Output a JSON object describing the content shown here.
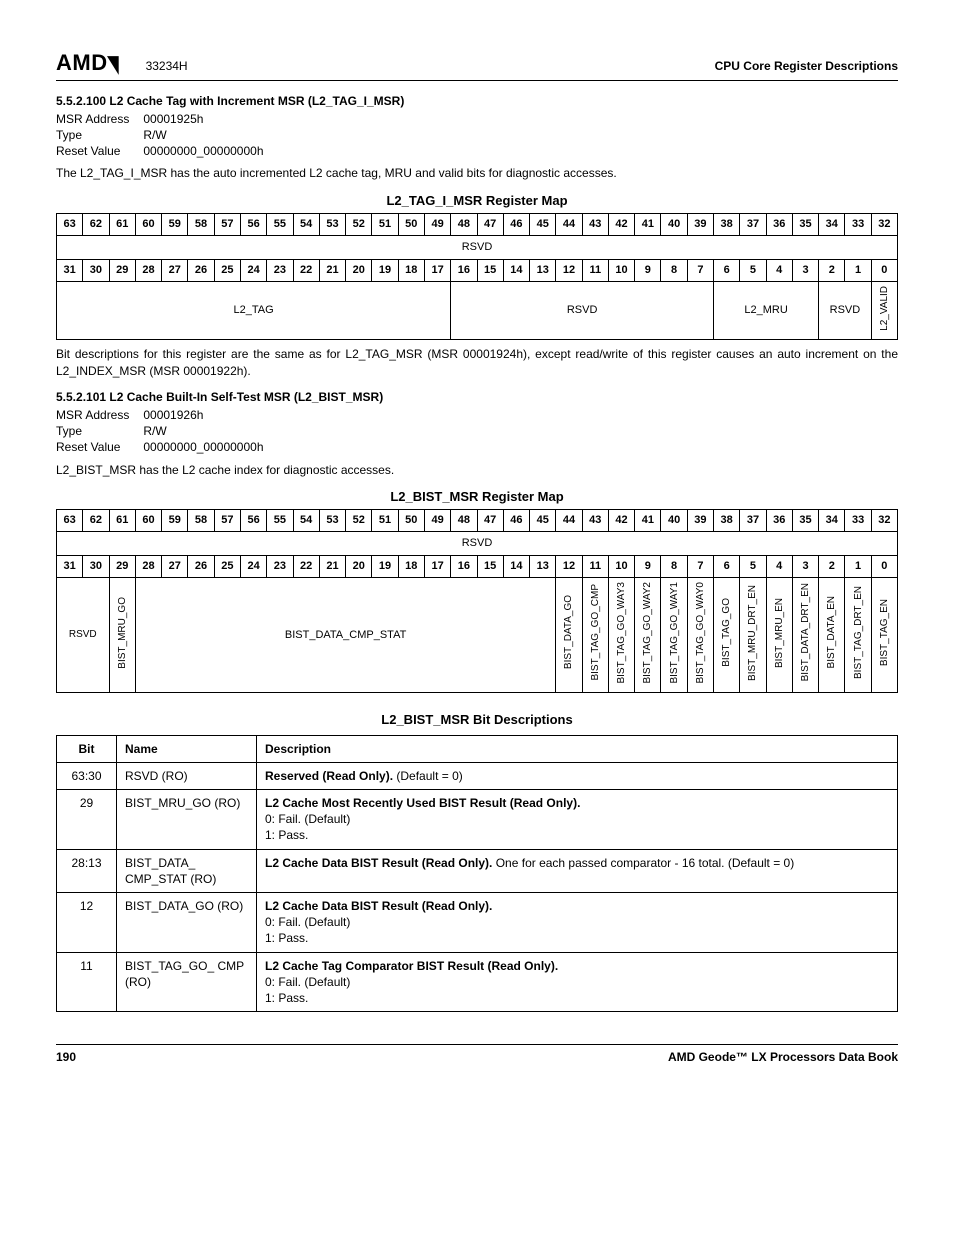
{
  "header": {
    "logo_main": "AMD",
    "logo_sub": "↗",
    "doc_num": "33234H",
    "doc_title": "CPU Core Register Descriptions"
  },
  "sec1": {
    "heading": "5.5.2.100 L2 Cache Tag with Increment MSR (L2_TAG_I_MSR)",
    "kv": [
      [
        "MSR Address",
        "00001925h"
      ],
      [
        "Type",
        "R/W"
      ],
      [
        "Reset Value",
        "00000000_00000000h"
      ]
    ],
    "para1": "The L2_TAG_I_MSR has the auto incremented L2 cache tag, MRU and valid bits for diagnostic accesses.",
    "map_title": "L2_TAG_I_MSR Register Map",
    "bits_hi": [
      "63",
      "62",
      "61",
      "60",
      "59",
      "58",
      "57",
      "56",
      "55",
      "54",
      "53",
      "52",
      "51",
      "50",
      "49",
      "48",
      "47",
      "46",
      "45",
      "44",
      "43",
      "42",
      "41",
      "40",
      "39",
      "38",
      "37",
      "36",
      "35",
      "34",
      "33",
      "32"
    ],
    "rsvd_hi": "RSVD",
    "bits_lo": [
      "31",
      "30",
      "29",
      "28",
      "27",
      "26",
      "25",
      "24",
      "23",
      "22",
      "21",
      "20",
      "19",
      "18",
      "17",
      "16",
      "15",
      "14",
      "13",
      "12",
      "11",
      "10",
      "9",
      "8",
      "7",
      "6",
      "5",
      "4",
      "3",
      "2",
      "1",
      "0"
    ],
    "row_lo": {
      "l2_tag": "L2_TAG",
      "rsvd": "RSVD",
      "l2_mru": "L2_MRU",
      "rsvd2": "RSVD",
      "l2_valid": "L2_VALID"
    },
    "para2": "Bit descriptions for this register are the same as for L2_TAG_MSR (MSR 00001924h), except read/write of this register causes an auto increment on the L2_INDEX_MSR (MSR 00001922h)."
  },
  "sec2": {
    "heading": "5.5.2.101 L2 Cache Built-In Self-Test MSR (L2_BIST_MSR)",
    "kv": [
      [
        "MSR Address",
        "00001926h"
      ],
      [
        "Type",
        "R/W"
      ],
      [
        "Reset Value",
        "00000000_00000000h"
      ]
    ],
    "para1": "L2_BIST_MSR has the L2 cache index for diagnostic accesses.",
    "map_title": "L2_BIST_MSR Register Map",
    "bits_hi": [
      "63",
      "62",
      "61",
      "60",
      "59",
      "58",
      "57",
      "56",
      "55",
      "54",
      "53",
      "52",
      "51",
      "50",
      "49",
      "48",
      "47",
      "46",
      "45",
      "44",
      "43",
      "42",
      "41",
      "40",
      "39",
      "38",
      "37",
      "36",
      "35",
      "34",
      "33",
      "32"
    ],
    "rsvd_hi": "RSVD",
    "bits_lo": [
      "31",
      "30",
      "29",
      "28",
      "27",
      "26",
      "25",
      "24",
      "23",
      "22",
      "21",
      "20",
      "19",
      "18",
      "17",
      "16",
      "15",
      "14",
      "13",
      "12",
      "11",
      "10",
      "9",
      "8",
      "7",
      "6",
      "5",
      "4",
      "3",
      "2",
      "1",
      "0"
    ],
    "row_lo_fields": {
      "rsvd": "RSVD",
      "bist_mru_go": "BIST_MRU_GO",
      "bist_data_cmp_stat": "BIST_DATA_CMP_STAT",
      "bist_data_go": "BIST_DATA_GO",
      "bist_tag_go_cmp": "BIST_TAG_GO_CMP",
      "bist_tag_go_way3": "BIST_TAG_GO_WAY3",
      "bist_tag_go_way2": "BIST_TAG_GO_WAY2",
      "bist_tag_go_way1": "BIST_TAG_GO_WAY1",
      "bist_tag_go_way0": "BIST_TAG_GO_WAY0",
      "bist_tag_go": "BIST_TAG_GO",
      "bist_mru_drt_en": "BIST_MRU_DRT_EN",
      "bist_mru_en": "BIST_MRU_EN",
      "bist_data_drt_en": "BIST_DATA_DRT_EN",
      "bist_data_en": "BIST_DATA_EN",
      "bist_tag_drt_en": "BIST_TAG_DRT_EN",
      "bist_tag_en": "BIST_TAG_EN"
    },
    "desc_title": "L2_BIST_MSR Bit Descriptions",
    "desc_headers": [
      "Bit",
      "Name",
      "Description"
    ],
    "desc_rows": [
      {
        "bit": "63:30",
        "name": "RSVD (RO)",
        "desc_bold": "Reserved (Read Only).",
        "desc_rest": " (Default = 0)",
        "extra": ""
      },
      {
        "bit": "29",
        "name": "BIST_MRU_GO (RO)",
        "desc_bold": "L2 Cache Most Recently Used BIST Result (Read Only).",
        "desc_rest": "",
        "extra": "0: Fail. (Default)\n1: Pass."
      },
      {
        "bit": "28:13",
        "name": "BIST_DATA_ CMP_STAT (RO)",
        "desc_bold": "L2 Cache Data BIST Result (Read Only).",
        "desc_rest": " One for each passed comparator - 16 total. (Default = 0)",
        "extra": ""
      },
      {
        "bit": "12",
        "name": "BIST_DATA_GO (RO)",
        "desc_bold": "L2 Cache Data BIST Result (Read Only).",
        "desc_rest": "",
        "extra": "0: Fail. (Default)\n1: Pass."
      },
      {
        "bit": "11",
        "name": "BIST_TAG_GO_ CMP (RO)",
        "desc_bold": "L2 Cache Tag Comparator BIST Result (Read Only).",
        "desc_rest": "",
        "extra": "0: Fail. (Default)\n1: Pass."
      }
    ]
  },
  "footer": {
    "page": "190",
    "book": "AMD Geode™ LX Processors Data Book"
  }
}
